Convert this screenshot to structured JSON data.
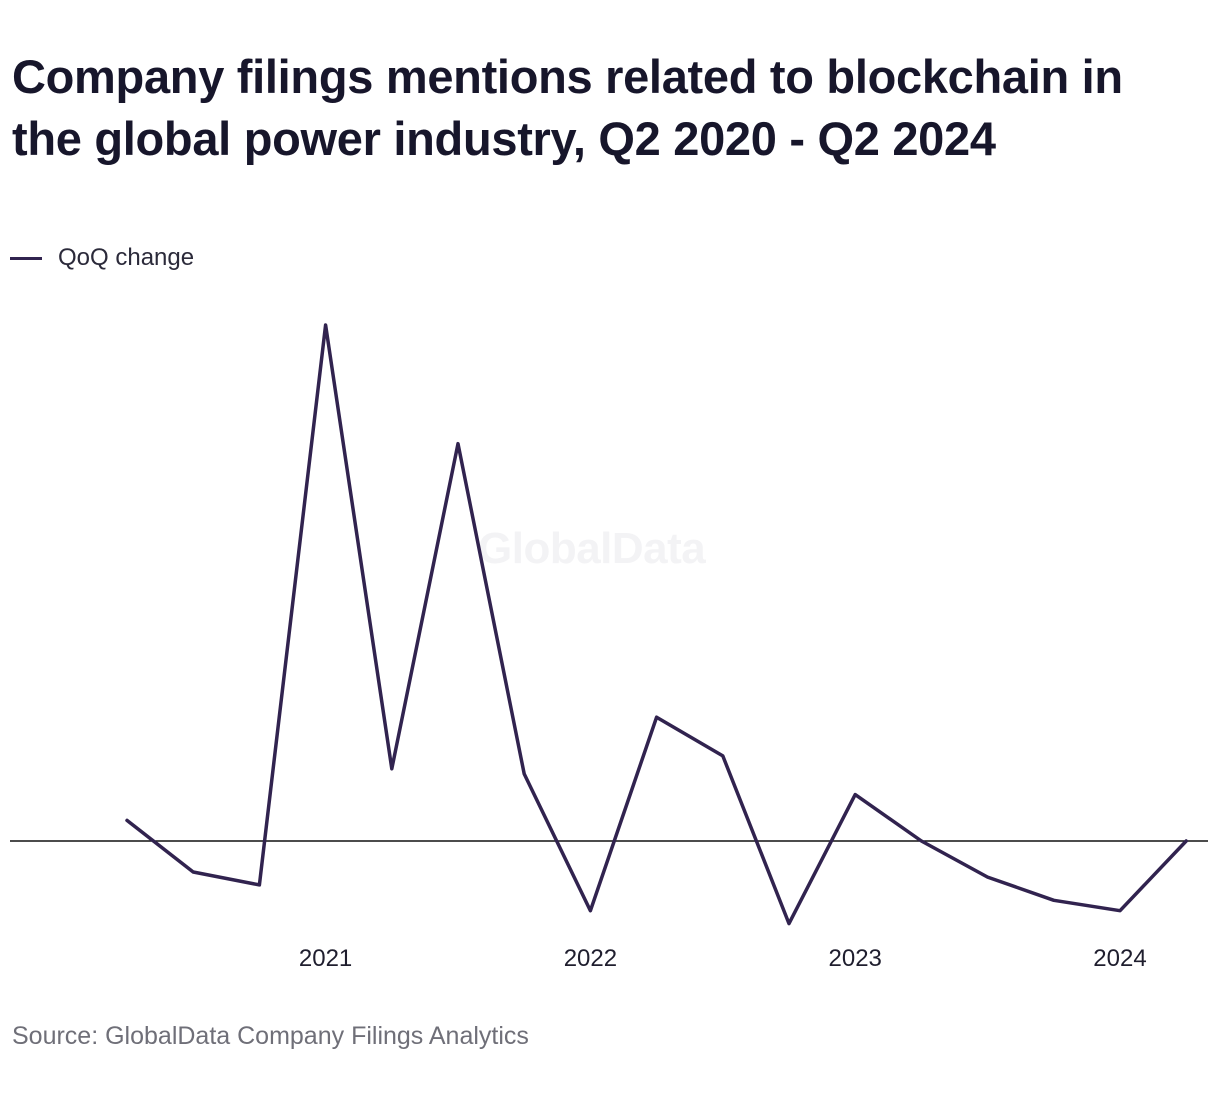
{
  "title": "Company filings mentions related to blockchain in the global power industry, Q2 2020 - Q2 2024",
  "legend": {
    "label": "QoQ change"
  },
  "watermark": "GlobalData",
  "source": "Source: GlobalData Company Filings Analytics",
  "colors": {
    "series": "#31234f",
    "baseline": "#111111",
    "title": "#17162b",
    "source": "#6f6f78"
  },
  "chart_data": {
    "type": "line",
    "title": "Company filings mentions related to blockchain in the global power industry, Q2 2020 - Q2 2024",
    "xlabel": "",
    "ylabel": "",
    "x": [
      "Q2 2020",
      "Q3 2020",
      "Q4 2020",
      "Q1 2021",
      "Q2 2021",
      "Q3 2021",
      "Q4 2021",
      "Q1 2022",
      "Q2 2022",
      "Q3 2022",
      "Q4 2022",
      "Q1 2023",
      "Q2 2023",
      "Q3 2023",
      "Q4 2023",
      "Q1 2024",
      "Q2 2024"
    ],
    "x_tick_labels": [
      {
        "label": "2021",
        "at": "Q1 2021"
      },
      {
        "label": "2022",
        "at": "Q1 2022"
      },
      {
        "label": "2023",
        "at": "Q1 2023"
      },
      {
        "label": "2024",
        "at": "Q1 2024"
      }
    ],
    "series": [
      {
        "name": "QoQ change",
        "values": [
          0.04,
          -0.06,
          -0.085,
          1.0,
          0.14,
          0.77,
          0.13,
          -0.135,
          0.24,
          0.165,
          -0.16,
          0.09,
          0.0,
          -0.07,
          -0.115,
          -0.135,
          0.0
        ]
      }
    ],
    "ylim": [
      -0.3,
      1.03
    ],
    "baseline": 0,
    "grid": false,
    "legend_position": "top-left",
    "y_axis_labels_shown": false
  }
}
